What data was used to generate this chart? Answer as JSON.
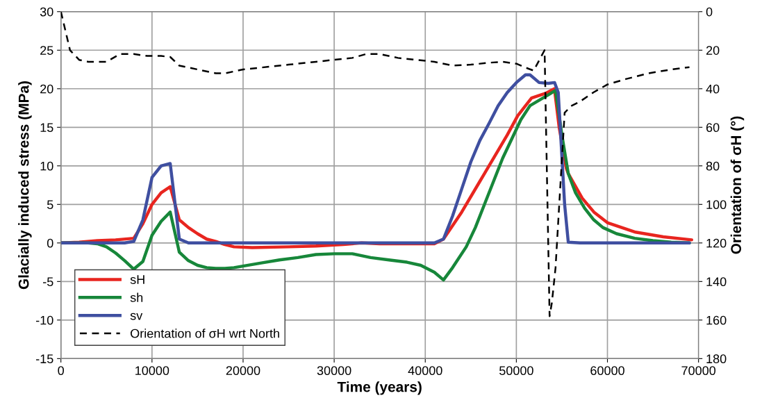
{
  "chart_data": {
    "type": "line",
    "xlabel": "Time (years)",
    "ylabel": "Glacially induced stress (MPa)",
    "y2label": "Orientation of σH (°)",
    "xlim": [
      0,
      70000
    ],
    "xticks": [
      0,
      10000,
      20000,
      30000,
      40000,
      50000,
      60000,
      70000
    ],
    "ylim": [
      -15,
      30
    ],
    "yticks": [
      -15,
      -10,
      -5,
      0,
      5,
      10,
      15,
      20,
      25,
      30
    ],
    "y2lim": [
      180,
      0
    ],
    "y2ticks": [
      0,
      20,
      40,
      60,
      80,
      100,
      120,
      140,
      160,
      180
    ],
    "grid": true,
    "legend": "bottom left",
    "marker": "none",
    "series": [
      {
        "name": "sH",
        "color": "#e8251f",
        "line_style": "solid",
        "x": [
          0,
          2000,
          4000,
          6000,
          8000,
          9000,
          10000,
          11000,
          12000,
          13000,
          14000,
          15000,
          16000,
          17000,
          18000,
          19000,
          21000,
          25000,
          28000,
          31000,
          33000,
          35000,
          41000,
          42000,
          44000,
          46000,
          48000,
          49000,
          50150,
          51670,
          53200,
          54180,
          54700,
          55480,
          55700,
          57230,
          58520,
          60040,
          63090,
          66130,
          69250
        ],
        "values": [
          0,
          0.1,
          0.3,
          0.4,
          0.6,
          2.5,
          5,
          6.5,
          7.3,
          3,
          2,
          1.2,
          0.5,
          0.2,
          -0.2,
          -0.5,
          -0.6,
          -0.5,
          -0.4,
          -0.2,
          0,
          -0.1,
          -0.1,
          0.5,
          4,
          8,
          12,
          14,
          16.5,
          18.8,
          19.4,
          20,
          15,
          9.7,
          9,
          5.8,
          4,
          2.6,
          1.4,
          0.8,
          0.4
        ]
      },
      {
        "name": "sh",
        "color": "#17873a",
        "line_style": "solid",
        "x": [
          0,
          3000,
          4000,
          5000,
          6000,
          7000,
          8000,
          9000,
          10000,
          11000,
          12000,
          13000,
          14000,
          15000,
          16000,
          17000,
          18000,
          19000,
          20000,
          22000,
          24000,
          26000,
          28000,
          30000,
          32000,
          34000,
          36000,
          38000,
          39500,
          41000,
          42000,
          43000,
          44500,
          45500,
          46500,
          47500,
          48500,
          49500,
          50500,
          51500,
          52500,
          53500,
          54300,
          55000,
          55700,
          56500,
          57500,
          58500,
          59500,
          61000,
          63000,
          65000,
          67000,
          69000
        ],
        "values": [
          0,
          0,
          -0.1,
          -0.5,
          -1.3,
          -2.3,
          -3.4,
          -2.4,
          1,
          2.8,
          4,
          -1.2,
          -2.3,
          -2.9,
          -3.2,
          -3.3,
          -3.3,
          -3.2,
          -3,
          -2.6,
          -2.2,
          -1.9,
          -1.5,
          -1.4,
          -1.4,
          -1.9,
          -2.2,
          -2.5,
          -2.9,
          -3.8,
          -4.8,
          -3.2,
          -0.5,
          2,
          5,
          8,
          11,
          13.5,
          16,
          17.8,
          18.5,
          19.2,
          19.8,
          14,
          9,
          6.5,
          4.5,
          3,
          2,
          1.2,
          0.6,
          0.3,
          0.1,
          0
        ]
      },
      {
        "name": "sv",
        "color": "#3f4fa0",
        "line_style": "solid",
        "x": [
          0,
          7000,
          8000,
          9000,
          10000,
          11000,
          12000,
          13000,
          14000,
          41000,
          42000,
          43000,
          44000,
          45000,
          46000,
          47000,
          48000,
          49000,
          50000,
          51000,
          51500,
          52500,
          53500,
          54200,
          54600,
          55300,
          55700,
          57000,
          69000
        ],
        "values": [
          0,
          0,
          0.2,
          3,
          8.5,
          10,
          10.3,
          0.5,
          0,
          0,
          0.5,
          3.5,
          7,
          10.5,
          13.3,
          15.5,
          17.8,
          19.5,
          20.8,
          21.8,
          21.8,
          20.8,
          20.7,
          20.8,
          19.5,
          5,
          0.1,
          0,
          0
        ]
      },
      {
        "name": "Orientation of σH wrt North",
        "color": "#000000",
        "line_style": "dashed",
        "axis": "y2",
        "x": [
          0,
          1000,
          2000,
          3000,
          5000,
          6500,
          8000,
          9500,
          11000,
          12000,
          13000,
          15000,
          17000,
          18000,
          20000,
          22000,
          25000,
          28000,
          30000,
          32000,
          33500,
          35000,
          37000,
          39000,
          41000,
          43000,
          45000,
          47000,
          48500,
          50000,
          51000,
          51900,
          53100,
          53650,
          53900,
          54300,
          55300,
          56000,
          57000,
          58500,
          60000,
          62000,
          64500,
          67000,
          69000
        ],
        "values": [
          0,
          20,
          25,
          26,
          26,
          22,
          22,
          23,
          23,
          23.5,
          28,
          30,
          32,
          32,
          30,
          29,
          27.5,
          26,
          25,
          24,
          22,
          22,
          24,
          25,
          26,
          28,
          27.5,
          26.5,
          26,
          27,
          29,
          30.6,
          20,
          158,
          151,
          133,
          52.5,
          49,
          46.6,
          41.8,
          37.8,
          35,
          32,
          30,
          28.8
        ]
      }
    ]
  }
}
